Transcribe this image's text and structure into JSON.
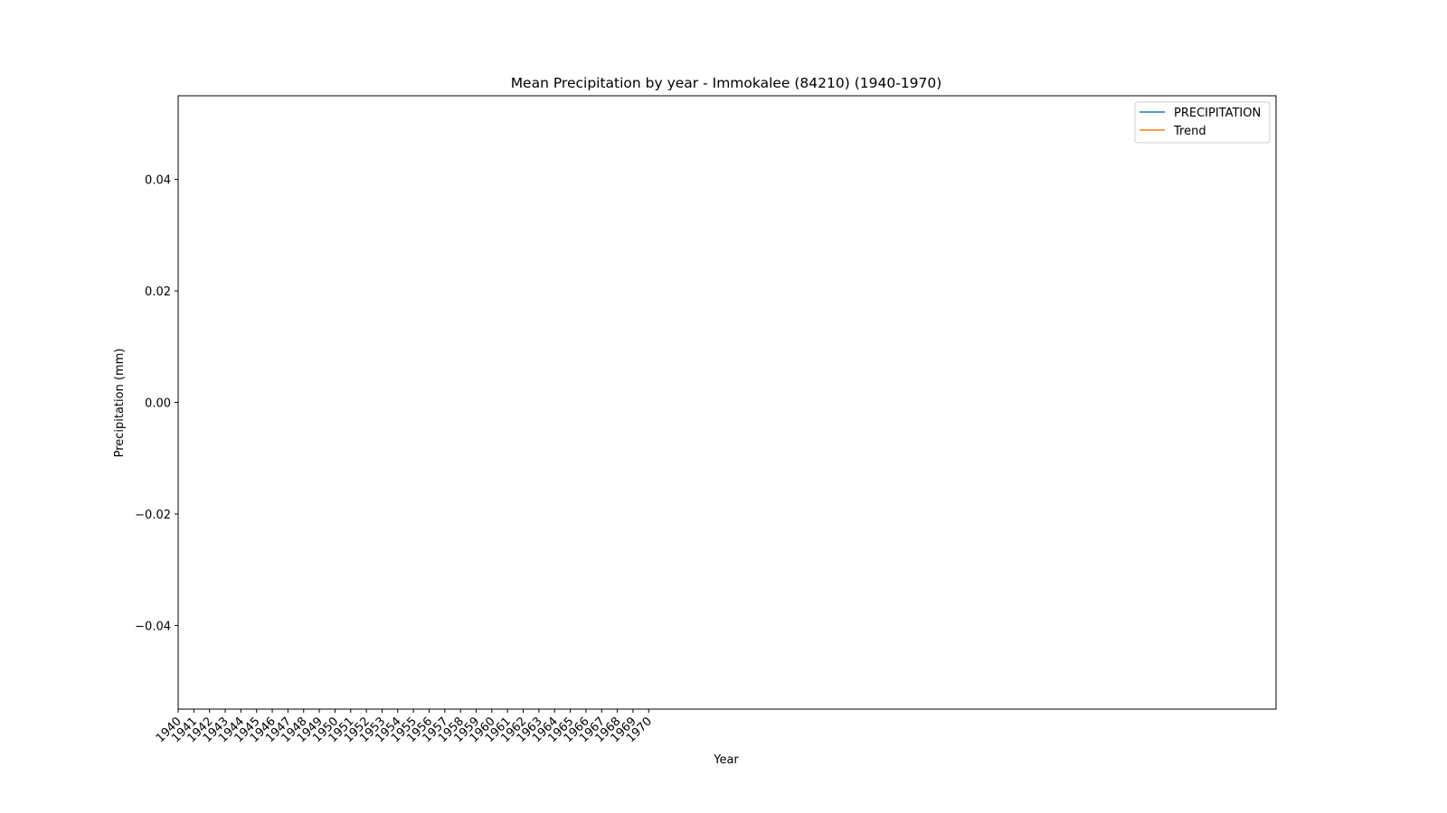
{
  "chart_data": {
    "type": "line",
    "title": "Mean Precipitation by year - Immokalee (84210) (1940-1970)",
    "x_label": "Year",
    "y_label": "Precipitation (mm)",
    "x": [],
    "series": [
      {
        "name": "PRECIPITATION",
        "color": "#1f77b4",
        "values": []
      },
      {
        "name": "Trend",
        "color": "#ff7f0e",
        "values": []
      }
    ],
    "xlim": [
      1940,
      2010
    ],
    "xticks": [
      1940,
      1941,
      1942,
      1943,
      1944,
      1945,
      1946,
      1947,
      1948,
      1949,
      1950,
      1951,
      1952,
      1953,
      1954,
      1955,
      1956,
      1957,
      1958,
      1959,
      1960,
      1961,
      1962,
      1963,
      1964,
      1965,
      1966,
      1967,
      1968,
      1969,
      1970
    ],
    "ylim": [
      -0.055,
      0.055
    ],
    "yticks": [
      {
        "value": -0.04,
        "label": "−0.04"
      },
      {
        "value": -0.02,
        "label": "−0.02"
      },
      {
        "value": 0,
        "label": "0.00"
      },
      0.02,
      0.04
    ],
    "legend": "upper right",
    "grid": false
  }
}
